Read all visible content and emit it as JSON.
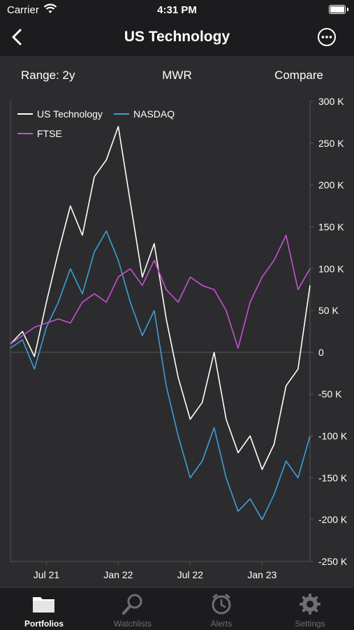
{
  "status": {
    "carrier": "Carrier",
    "time": "4:31 PM"
  },
  "nav": {
    "title": "US Technology"
  },
  "controls": {
    "range": "Range: 2y",
    "metric": "MWR",
    "compare": "Compare"
  },
  "tabs": [
    {
      "label": "Portfolios",
      "icon": "folder-icon",
      "active": true
    },
    {
      "label": "Watchlists",
      "icon": "magnifier-icon",
      "active": false
    },
    {
      "label": "Alerts",
      "icon": "clock-icon",
      "active": false
    },
    {
      "label": "Settings",
      "icon": "gear-icon",
      "active": false
    }
  ],
  "colors": {
    "us_tech": "#ffffff",
    "nasdaq": "#3b9fd6",
    "ftse": "#c84fd6",
    "background": "#2c2c2e"
  },
  "chart_data": {
    "type": "line",
    "y_tick_labels": [
      "300 K",
      "250 K",
      "200 K",
      "150 K",
      "100 K",
      "50 K",
      "0",
      "-50 K",
      "-100 K",
      "-150 K",
      "-200 K",
      "-250 K"
    ],
    "y_ticks": [
      300000,
      250000,
      200000,
      150000,
      100000,
      50000,
      0,
      -50000,
      -100000,
      -150000,
      -200000,
      -250000
    ],
    "ylim": [
      -250000,
      300000
    ],
    "x_tick_labels": [
      "Jul 21",
      "Jan 22",
      "Jul 22",
      "Jan 23"
    ],
    "x_ticks": [
      "2021-07",
      "2022-01",
      "2022-07",
      "2023-01"
    ],
    "xlim": [
      "2021-04",
      "2023-05"
    ],
    "legend": [
      "US Technology",
      "NASDAQ",
      "FTSE"
    ],
    "legend_position": "top-left",
    "grid": "zero-line",
    "x": [
      "2021-04",
      "2021-05",
      "2021-06",
      "2021-07",
      "2021-08",
      "2021-09",
      "2021-10",
      "2021-11",
      "2021-12",
      "2022-01",
      "2022-02",
      "2022-03",
      "2022-04",
      "2022-05",
      "2022-06",
      "2022-07",
      "2022-08",
      "2022-09",
      "2022-10",
      "2022-11",
      "2022-12",
      "2023-01",
      "2023-02",
      "2023-03",
      "2023-04",
      "2023-05"
    ],
    "series": [
      {
        "name": "US Technology",
        "values": [
          10000,
          25000,
          -5000,
          60000,
          120000,
          175000,
          140000,
          210000,
          230000,
          270000,
          180000,
          90000,
          130000,
          40000,
          -30000,
          -80000,
          -60000,
          0,
          -80000,
          -120000,
          -100000,
          -140000,
          -110000,
          -40000,
          -20000,
          80000
        ]
      },
      {
        "name": "NASDAQ",
        "values": [
          5000,
          15000,
          -20000,
          30000,
          60000,
          100000,
          70000,
          120000,
          145000,
          110000,
          60000,
          20000,
          50000,
          -40000,
          -100000,
          -150000,
          -130000,
          -90000,
          -150000,
          -190000,
          -175000,
          -200000,
          -170000,
          -130000,
          -150000,
          -100000
        ]
      },
      {
        "name": "FTSE",
        "values": [
          10000,
          20000,
          30000,
          35000,
          40000,
          35000,
          60000,
          70000,
          60000,
          90000,
          100000,
          80000,
          110000,
          75000,
          60000,
          90000,
          80000,
          75000,
          50000,
          5000,
          60000,
          90000,
          110000,
          140000,
          75000,
          100000
        ]
      }
    ]
  }
}
